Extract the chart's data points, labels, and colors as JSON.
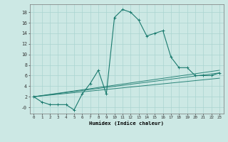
{
  "xlabel": "Humidex (Indice chaleur)",
  "background_color": "#cce8e4",
  "grid_color": "#aad4d0",
  "line_color": "#1a7a6e",
  "xlim": [
    -0.5,
    23.5
  ],
  "ylim": [
    -1.2,
    19.5
  ],
  "ytick_values": [
    0,
    2,
    4,
    6,
    8,
    10,
    12,
    14,
    16,
    18
  ],
  "ytick_labels": [
    "-0",
    "2",
    "4",
    "6",
    "8",
    "10",
    "12",
    "14",
    "16",
    "18"
  ],
  "xtick_values": [
    0,
    1,
    2,
    3,
    4,
    5,
    6,
    7,
    8,
    9,
    10,
    11,
    12,
    13,
    14,
    15,
    16,
    17,
    18,
    19,
    20,
    21,
    22,
    23
  ],
  "xtick_labels": [
    "0",
    "1",
    "2",
    "3",
    "4",
    "5",
    "6",
    "7",
    "8",
    "9",
    "10",
    "11",
    "12",
    "13",
    "14",
    "15",
    "16",
    "17",
    "18",
    "19",
    "20",
    "21",
    "22",
    "23"
  ],
  "main_series": {
    "x": [
      0,
      1,
      2,
      3,
      4,
      5,
      6,
      7,
      8,
      9,
      10,
      11,
      12,
      13,
      14,
      15,
      16,
      17,
      18,
      19,
      20,
      21,
      22,
      23
    ],
    "y": [
      2,
      1,
      0.5,
      0.5,
      0.5,
      -0.5,
      2.5,
      4.5,
      7,
      2.5,
      17,
      18.5,
      18,
      16.5,
      13.5,
      14,
      14.5,
      9.5,
      7.5,
      7.5,
      6,
      6,
      6,
      6.5
    ]
  },
  "linear_series": [
    {
      "x": [
        0,
        23
      ],
      "y": [
        2,
        6.5
      ]
    },
    {
      "x": [
        0,
        23
      ],
      "y": [
        2,
        7.0
      ]
    },
    {
      "x": [
        0,
        23
      ],
      "y": [
        2,
        5.5
      ]
    }
  ]
}
